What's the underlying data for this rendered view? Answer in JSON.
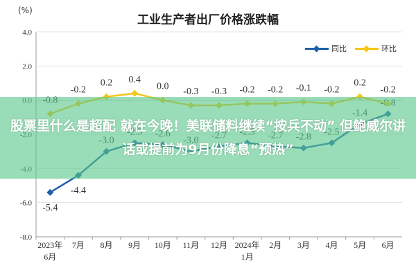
{
  "overlay": {
    "headline": "股票里什么是超配 就在今晚！美联储料继续“按兵不动” 但鲍威尔讲话或提前为9月份降息“预热”"
  },
  "chart_data": {
    "type": "line",
    "title": "工业生产者出厂价格涨跌幅",
    "unit": "(%)",
    "categories": [
      "2023年\n6月",
      "7月",
      "8月",
      "9月",
      "10月",
      "11月",
      "12月",
      "2024年\n1月",
      "2月",
      "3月",
      "4月",
      "5月",
      "6月"
    ],
    "series": [
      {
        "name": "同比",
        "color": "#1f5fa8",
        "values": [
          -5.4,
          -4.4,
          -3.0,
          -2.5,
          -2.6,
          -3.0,
          -2.7,
          -2.5,
          -2.7,
          -2.8,
          -2.5,
          -1.4,
          -0.8
        ]
      },
      {
        "name": "环比",
        "color": "#f5c518",
        "values": [
          -0.8,
          -0.2,
          0.2,
          0.4,
          0.0,
          -0.3,
          -0.3,
          -0.2,
          -0.2,
          -0.1,
          -0.2,
          0.2,
          -0.2
        ]
      }
    ],
    "yticks": [
      "4.0",
      "2.0",
      "0.0",
      "-2.0",
      "-4.0",
      "-6.0",
      "-8.0"
    ],
    "ylim": [
      -8,
      4
    ],
    "data_labels": {
      "同比": [
        "-5.4",
        "-4.4",
        "-3.0",
        "-2.5",
        "-2.6",
        "-3.0",
        "-2.7",
        "-2.5",
        "-2.7",
        "-2.8",
        "-2.5",
        "-1.4",
        "-0.8"
      ],
      "环比": [
        "-0.8",
        "-0.2",
        "0.2",
        "0.4",
        "0.0",
        "-0.3",
        "-0.3",
        "-0.2",
        "-0.2",
        "-0.1",
        "-0.2",
        "0.2",
        "-0.2"
      ]
    },
    "legend_position": "top-right",
    "grid": true
  }
}
